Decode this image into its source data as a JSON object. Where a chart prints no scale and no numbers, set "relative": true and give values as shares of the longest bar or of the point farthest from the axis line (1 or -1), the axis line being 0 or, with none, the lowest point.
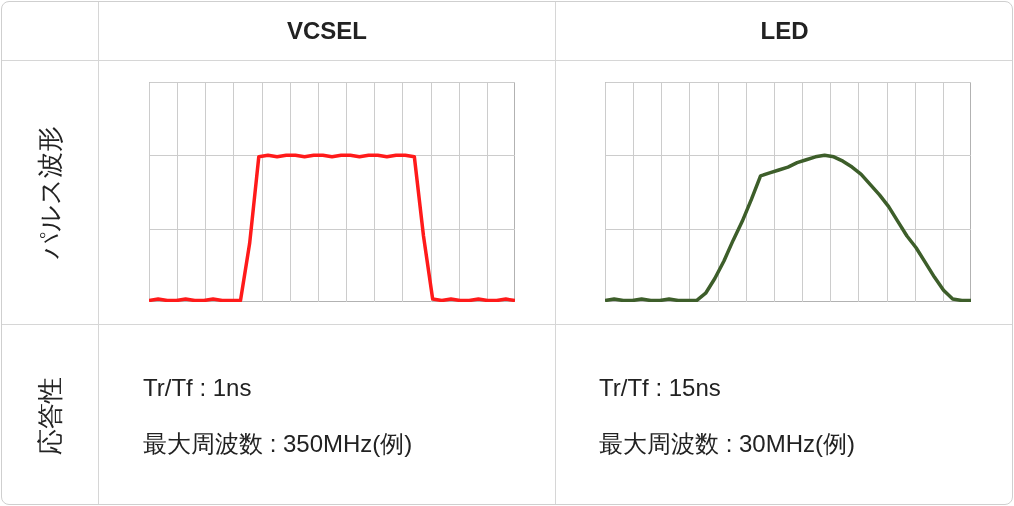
{
  "chart_data": [
    {
      "type": "line",
      "title": "VCSEL",
      "ylabel": "パルス波形",
      "relative": true,
      "grid": true,
      "categories": [
        null,
        null,
        null,
        null,
        null,
        null,
        null,
        null,
        null,
        null,
        null,
        null,
        null,
        null,
        null,
        null,
        null,
        null,
        null,
        null,
        null,
        null,
        null,
        null,
        null,
        null,
        null,
        null,
        null,
        null,
        null,
        null,
        null,
        null,
        null,
        null,
        null,
        null,
        null,
        null,
        null
      ],
      "series": [
        {
          "color": "#ff1a1a",
          "values": [
            0.01,
            0.02,
            0.01,
            0.01,
            0.02,
            0.01,
            0.01,
            0.02,
            0.01,
            0.01,
            0.01,
            0.4,
            0.99,
            1,
            0.99,
            1,
            1,
            0.99,
            1,
            1,
            0.99,
            1,
            1,
            0.99,
            1,
            1,
            0.99,
            1,
            1,
            0.99,
            0.45,
            0.02,
            0.01,
            0.02,
            0.01,
            0.01,
            0.02,
            0.01,
            0.01,
            0.02,
            0.01
          ]
        }
      ]
    },
    {
      "type": "line",
      "title": "LED",
      "relative": true,
      "grid": true,
      "categories": [
        null,
        null,
        null,
        null,
        null,
        null,
        null,
        null,
        null,
        null,
        null,
        null,
        null,
        null,
        null,
        null,
        null,
        null,
        null,
        null,
        null,
        null,
        null,
        null,
        null,
        null,
        null,
        null,
        null,
        null,
        null,
        null,
        null,
        null,
        null,
        null,
        null,
        null,
        null,
        null,
        null
      ],
      "series": [
        {
          "color": "#3d5e2a",
          "values": [
            0.01,
            0.02,
            0.01,
            0.01,
            0.02,
            0.01,
            0.01,
            0.02,
            0.01,
            0.01,
            0.01,
            0.06,
            0.16,
            0.28,
            0.42,
            0.55,
            0.7,
            0.86,
            0.88,
            0.9,
            0.92,
            0.95,
            0.97,
            0.99,
            1,
            0.99,
            0.96,
            0.92,
            0.87,
            0.8,
            0.73,
            0.65,
            0.55,
            0.45,
            0.37,
            0.27,
            0.17,
            0.08,
            0.02,
            0.01,
            0.01
          ]
        }
      ]
    },
    {
      "type": "other",
      "title": "応答性",
      "annotations": [
        "Tr/Tf : 1ns",
        "最大周波数 : 350MHz(例)",
        "Tr/Tf : 15ns",
        "最大周波数 : 30MHz(例)"
      ]
    }
  ]
}
